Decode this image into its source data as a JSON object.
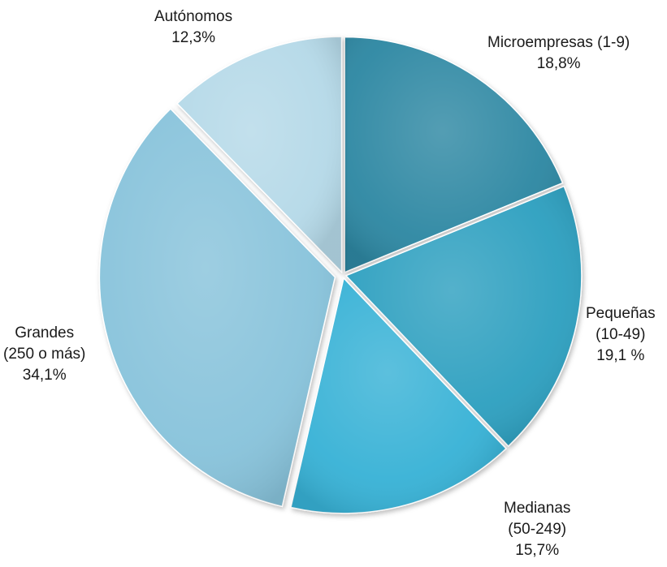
{
  "chart_data": {
    "type": "pie",
    "title": "",
    "start_angle_deg": 0,
    "direction": "clockwise",
    "slices": [
      {
        "label_lines": [
          "Microempresas (1-9)",
          "18,8%"
        ],
        "value": 18.8,
        "color": "#2e88a3"
      },
      {
        "label_lines": [
          "Pequeñas",
          "(10-49)",
          "19,1 %"
        ],
        "value": 19.1,
        "color": "#2fa0c0"
      },
      {
        "label_lines": [
          "Medianas",
          "(50-249)",
          "15,7%"
        ],
        "value": 15.7,
        "color": "#38b2d6"
      },
      {
        "label_lines": [
          "Grandes",
          "(250 o más)",
          "34,1%"
        ],
        "value": 34.1,
        "color": "#88c3db"
      },
      {
        "label_lines": [
          "Autónomos",
          "12,3%"
        ],
        "value": 12.3,
        "color": "#b5d9e8"
      }
    ]
  }
}
